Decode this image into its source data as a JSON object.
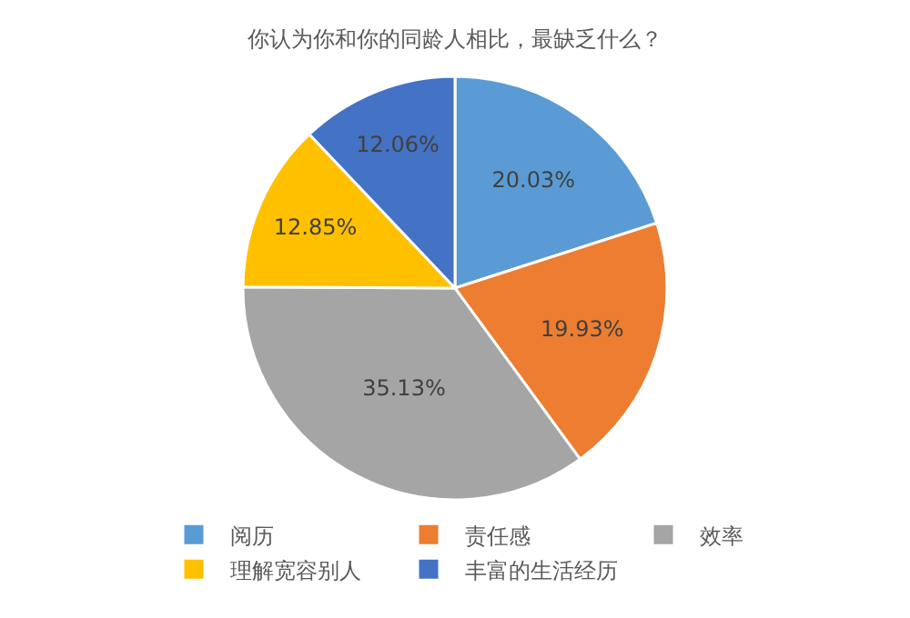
{
  "chart_data": {
    "type": "pie",
    "title": "你认为你和你的同龄人相比，最缺乏什么？",
    "categories": [
      "阅历",
      "责任感",
      "效率",
      "理解宽容别人",
      "丰富的生活经历"
    ],
    "values": [
      20.03,
      19.93,
      35.13,
      12.85,
      12.06
    ],
    "value_labels": [
      "20.03%",
      "19.93%",
      "35.13%",
      "12.85%",
      "12.06%"
    ],
    "colors": [
      "#5b9bd5",
      "#ed7d31",
      "#a5a5a5",
      "#ffc000",
      "#4472c4"
    ],
    "legend": "bottom"
  }
}
